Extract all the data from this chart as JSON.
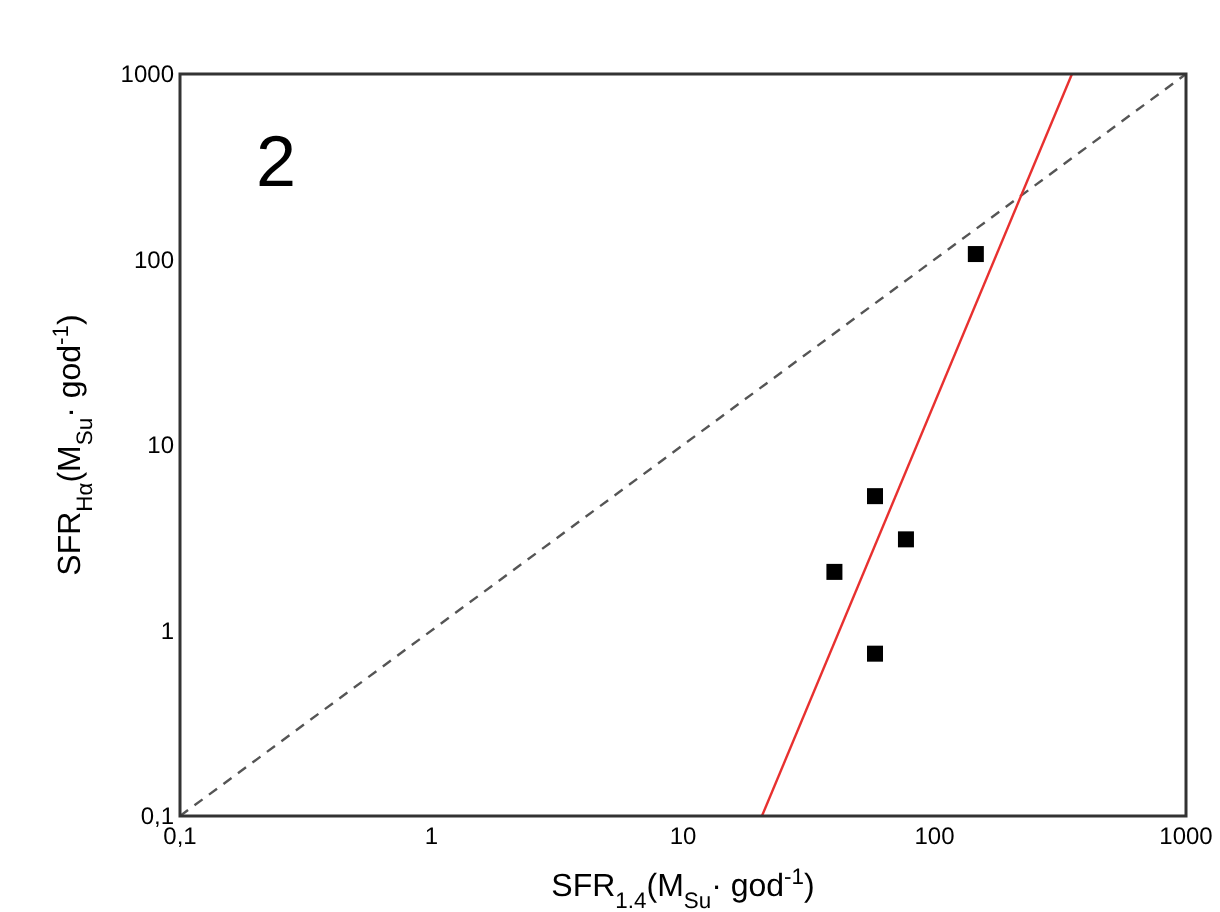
{
  "chart_data": {
    "type": "scatter",
    "xlabel": "SFR$_{1.4}$(M$_{Su}$· god$^{-1}$)",
    "ylabel": "SFR$_{Hα}$(M$_{Su}$· god$^{-1}$)",
    "annotations": [
      "2"
    ],
    "log": "xy",
    "xlim": [
      0.1,
      1000
    ],
    "ylim": [
      0.1,
      1000
    ],
    "xticks": [
      {
        "value": 0.1,
        "label": "0,1"
      },
      1,
      10,
      100,
      1000
    ],
    "yticks": [
      {
        "value": 0.1,
        "label": "0,1"
      },
      1,
      10,
      100,
      1000
    ],
    "grid": false,
    "series": [
      {
        "color": "#000000",
        "marker": "square",
        "x": [
          146,
          58,
          77,
          40,
          58
        ],
        "values": [
          107,
          5.3,
          3.1,
          2.07,
          0.75
        ]
      },
      {
        "type": "line",
        "color": "#555555",
        "line_style": "dashed",
        "marker": "none",
        "x": [
          0.1,
          1000
        ],
        "values": [
          0.1,
          1000
        ]
      },
      {
        "type": "line",
        "color": "#e8302f",
        "line_style": "solid",
        "marker": "none",
        "x": [
          20.6,
          352
        ],
        "values": [
          0.1,
          1000
        ]
      }
    ]
  }
}
